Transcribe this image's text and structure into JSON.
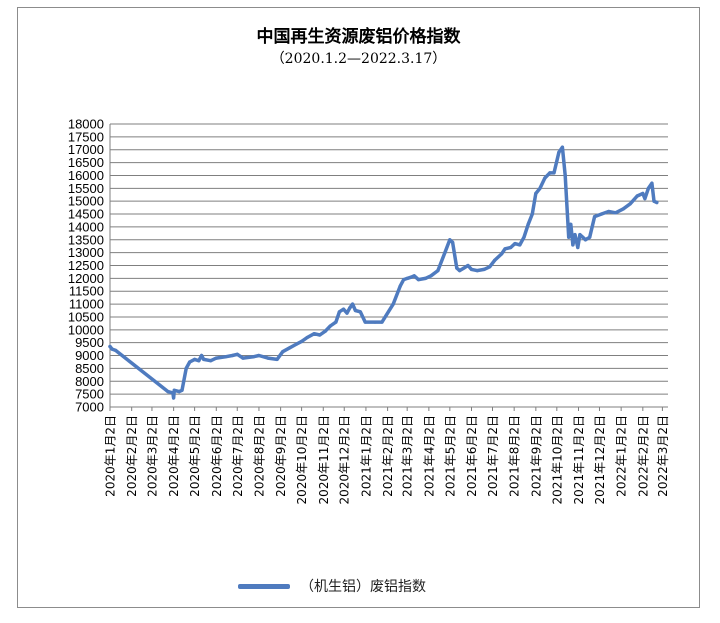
{
  "chart_data": {
    "type": "line",
    "title": "中国再生资源废铝价格指数",
    "subtitle": "（2020.1.2—2022.3.17）",
    "xlabel": "",
    "ylabel": "",
    "ylim": [
      7000,
      18000
    ],
    "y_ticks": [
      "18000",
      "17500",
      "17000",
      "16500",
      "16000",
      "15500",
      "15000",
      "14500",
      "14000",
      "13500",
      "13000",
      "12500",
      "12000",
      "11500",
      "11000",
      "10500",
      "10000",
      "9500",
      "9000",
      "8500",
      "8000",
      "7500",
      "7000"
    ],
    "x_tick_labels": [
      "2020年1月2日",
      "2020年2月2日",
      "2020年3月2日",
      "2020年4月2日",
      "2020年5月2日",
      "2020年6月2日",
      "2020年7月2日",
      "2020年8月2日",
      "2020年9月2日",
      "2020年10月2日",
      "2020年11月2日",
      "2020年12月2日",
      "2021年1月2日",
      "2021年2月2日",
      "2021年3月2日",
      "2021年4月2日",
      "2021年5月2日",
      "2021年6月2日",
      "2021年7月2日",
      "2021年8月2日",
      "2021年9月2日",
      "2021年10月2日",
      "2021年11月2日",
      "2021年12月2日",
      "2022年1月2日",
      "2022年2月2日",
      "2022年3月2日"
    ],
    "grid": true,
    "legend_position": "bottom",
    "color": "#4F7BBF",
    "series": [
      {
        "name": "（机生铝）废铝指数",
        "points": [
          [
            "2020-01-02",
            9350
          ],
          [
            "2020-01-05",
            9250
          ],
          [
            "2020-01-10",
            9200
          ],
          [
            "2020-03-25",
            7600
          ],
          [
            "2020-04-01",
            7550
          ],
          [
            "2020-04-02",
            7350
          ],
          [
            "2020-04-03",
            7650
          ],
          [
            "2020-04-10",
            7600
          ],
          [
            "2020-04-14",
            7650
          ],
          [
            "2020-04-20",
            8500
          ],
          [
            "2020-04-25",
            8750
          ],
          [
            "2020-05-02",
            8850
          ],
          [
            "2020-05-08",
            8800
          ],
          [
            "2020-05-12",
            9000
          ],
          [
            "2020-05-15",
            8850
          ],
          [
            "2020-05-25",
            8800
          ],
          [
            "2020-06-02",
            8900
          ],
          [
            "2020-06-15",
            8950
          ],
          [
            "2020-06-25",
            9000
          ],
          [
            "2020-07-02",
            9050
          ],
          [
            "2020-07-10",
            8900
          ],
          [
            "2020-07-25",
            8950
          ],
          [
            "2020-08-02",
            9000
          ],
          [
            "2020-08-15",
            8900
          ],
          [
            "2020-08-28",
            8850
          ],
          [
            "2020-09-05",
            9150
          ],
          [
            "2020-09-15",
            9300
          ],
          [
            "2020-09-25",
            9450
          ],
          [
            "2020-10-02",
            9550
          ],
          [
            "2020-10-10",
            9700
          ],
          [
            "2020-10-20",
            9850
          ],
          [
            "2020-10-28",
            9800
          ],
          [
            "2020-11-05",
            9950
          ],
          [
            "2020-11-12",
            10150
          ],
          [
            "2020-11-20",
            10300
          ],
          [
            "2020-11-25",
            10700
          ],
          [
            "2020-12-01",
            10800
          ],
          [
            "2020-12-06",
            10650
          ],
          [
            "2020-12-10",
            10850
          ],
          [
            "2020-12-14",
            11000
          ],
          [
            "2020-12-18",
            10750
          ],
          [
            "2020-12-25",
            10700
          ],
          [
            "2021-01-01",
            10300
          ],
          [
            "2021-01-15",
            10300
          ],
          [
            "2021-01-25",
            10300
          ],
          [
            "2021-02-10",
            11000
          ],
          [
            "2021-02-20",
            11700
          ],
          [
            "2021-02-25",
            11950
          ],
          [
            "2021-03-02",
            12000
          ],
          [
            "2021-03-08",
            12050
          ],
          [
            "2021-03-12",
            12100
          ],
          [
            "2021-03-18",
            11950
          ],
          [
            "2021-03-28",
            12000
          ],
          [
            "2021-04-05",
            12100
          ],
          [
            "2021-04-15",
            12300
          ],
          [
            "2021-04-25",
            13000
          ],
          [
            "2021-05-02",
            13500
          ],
          [
            "2021-05-06",
            13400
          ],
          [
            "2021-05-12",
            12400
          ],
          [
            "2021-05-16",
            12300
          ],
          [
            "2021-05-22",
            12400
          ],
          [
            "2021-05-28",
            12500
          ],
          [
            "2021-06-02",
            12350
          ],
          [
            "2021-06-10",
            12300
          ],
          [
            "2021-06-20",
            12350
          ],
          [
            "2021-06-28",
            12450
          ],
          [
            "2021-07-05",
            12700
          ],
          [
            "2021-07-15",
            12950
          ],
          [
            "2021-07-20",
            13150
          ],
          [
            "2021-07-28",
            13200
          ],
          [
            "2021-08-03",
            13350
          ],
          [
            "2021-08-10",
            13300
          ],
          [
            "2021-08-16",
            13600
          ],
          [
            "2021-08-22",
            14100
          ],
          [
            "2021-08-28",
            14500
          ],
          [
            "2021-09-02",
            15300
          ],
          [
            "2021-09-08",
            15500
          ],
          [
            "2021-09-15",
            15900
          ],
          [
            "2021-09-22",
            16100
          ],
          [
            "2021-09-28",
            16100
          ],
          [
            "2021-10-05",
            16900
          ],
          [
            "2021-10-10",
            17100
          ],
          [
            "2021-10-14",
            16000
          ],
          [
            "2021-10-19",
            13600
          ],
          [
            "2021-10-22",
            14100
          ],
          [
            "2021-10-25",
            13300
          ],
          [
            "2021-10-28",
            13700
          ],
          [
            "2021-11-01",
            13200
          ],
          [
            "2021-11-04",
            13700
          ],
          [
            "2021-11-08",
            13600
          ],
          [
            "2021-11-12",
            13500
          ],
          [
            "2021-11-18",
            13600
          ],
          [
            "2021-11-25",
            14400
          ],
          [
            "2021-12-05",
            14500
          ],
          [
            "2021-12-15",
            14600
          ],
          [
            "2021-12-25",
            14550
          ],
          [
            "2022-01-05",
            14700
          ],
          [
            "2022-01-15",
            14900
          ],
          [
            "2022-01-25",
            15200
          ],
          [
            "2022-02-02",
            15300
          ],
          [
            "2022-02-05",
            15100
          ],
          [
            "2022-02-10",
            15500
          ],
          [
            "2022-02-15",
            15700
          ],
          [
            "2022-02-18",
            15000
          ],
          [
            "2022-02-22",
            14950
          ]
        ]
      }
    ]
  }
}
